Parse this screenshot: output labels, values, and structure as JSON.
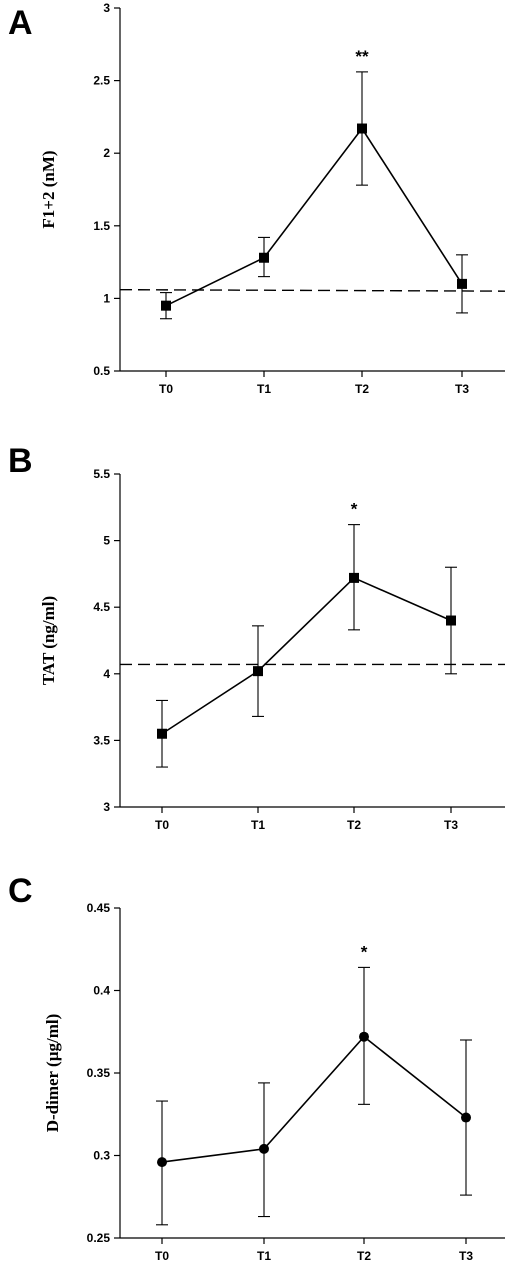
{
  "chart_data": [
    {
      "type": "line",
      "panel": "A",
      "ylabel": "F1+2 (nM)",
      "categories": [
        "T0",
        "T1",
        "T2",
        "T3"
      ],
      "ylim": [
        0.5,
        3
      ],
      "yticks": [
        "0.5",
        "1",
        "1.5",
        "2",
        "2.5",
        "3"
      ],
      "ytick_values": [
        0.5,
        1,
        1.5,
        2,
        2.5,
        3
      ],
      "marker": "square",
      "series": [
        {
          "values": [
            0.95,
            1.28,
            2.17,
            1.1
          ],
          "err_low": [
            0.86,
            1.15,
            1.78,
            0.9
          ],
          "err_high": [
            1.04,
            1.42,
            2.56,
            1.3
          ]
        }
      ],
      "reference_line": [
        1.06,
        1.05
      ],
      "annotations": [
        {
          "category": "T2",
          "text": "**"
        }
      ]
    },
    {
      "type": "line",
      "panel": "B",
      "ylabel": "TAT (ng/ml)",
      "categories": [
        "T0",
        "T1",
        "T2",
        "T3"
      ],
      "ylim": [
        3,
        5.5
      ],
      "yticks": [
        "3",
        "3.5",
        "4",
        "4.5",
        "5",
        "5.5"
      ],
      "ytick_values": [
        3,
        3.5,
        4,
        4.5,
        5,
        5.5
      ],
      "marker": "square",
      "series": [
        {
          "values": [
            3.55,
            4.02,
            4.72,
            4.4
          ],
          "err_low": [
            3.3,
            3.68,
            4.33,
            4.0
          ],
          "err_high": [
            3.8,
            4.36,
            5.12,
            4.8
          ]
        }
      ],
      "reference_line": [
        4.07,
        4.07
      ],
      "annotations": [
        {
          "category": "T2",
          "text": "*"
        }
      ]
    },
    {
      "type": "line",
      "panel": "C",
      "ylabel": "D-dimer (µg/ml)",
      "categories": [
        "T0",
        "T1",
        "T2",
        "T3"
      ],
      "ylim": [
        0.25,
        0.45
      ],
      "yticks": [
        "0.25",
        "0.3",
        "0.35",
        "0.4",
        "0.45"
      ],
      "ytick_values": [
        0.25,
        0.3,
        0.35,
        0.4,
        0.45
      ],
      "marker": "circle",
      "series": [
        {
          "values": [
            0.296,
            0.304,
            0.372,
            0.323
          ],
          "err_low": [
            0.258,
            0.263,
            0.331,
            0.276
          ],
          "err_high": [
            0.333,
            0.344,
            0.414,
            0.37
          ]
        }
      ],
      "annotations": [
        {
          "category": "T2",
          "text": "*"
        }
      ]
    }
  ]
}
